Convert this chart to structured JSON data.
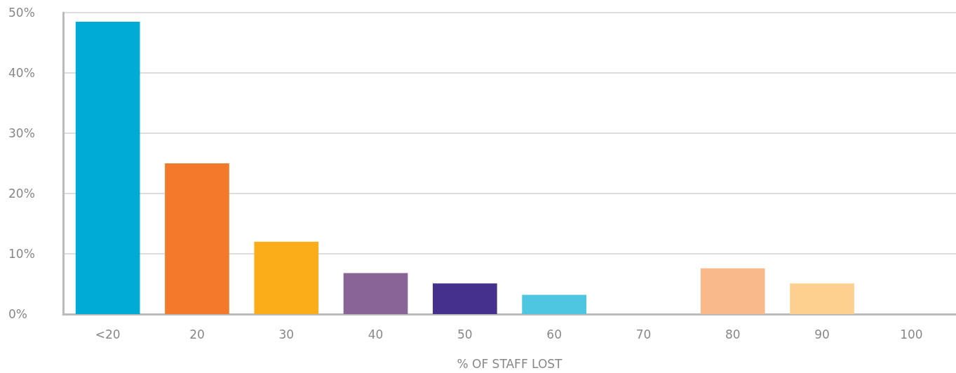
{
  "chart_data": {
    "type": "bar",
    "xlabel": "% OF STAFF LOST",
    "categories": [
      "<20",
      "20",
      "30",
      "40",
      "50",
      "60",
      "70",
      "80",
      "90",
      "100"
    ],
    "values": [
      48.5,
      25,
      12,
      6.8,
      5.1,
      3.2,
      0,
      7.6,
      5.1,
      0
    ],
    "colors": [
      "#00abd6",
      "#f37a2b",
      "#faad19",
      "#886497",
      "#45308d",
      "#4ec5e1",
      "#cccccc",
      "#f9b98a",
      "#fed08f",
      "#cccccc"
    ],
    "ylim": [
      0,
      50
    ],
    "yticks": [
      {
        "value": 0,
        "label": "0%"
      },
      {
        "value": 10,
        "label": "10%"
      },
      {
        "value": 20,
        "label": "20%"
      },
      {
        "value": 30,
        "label": "30%"
      },
      {
        "value": 40,
        "label": "40%"
      },
      {
        "value": 50,
        "label": "50%"
      }
    ],
    "grid": "y"
  }
}
